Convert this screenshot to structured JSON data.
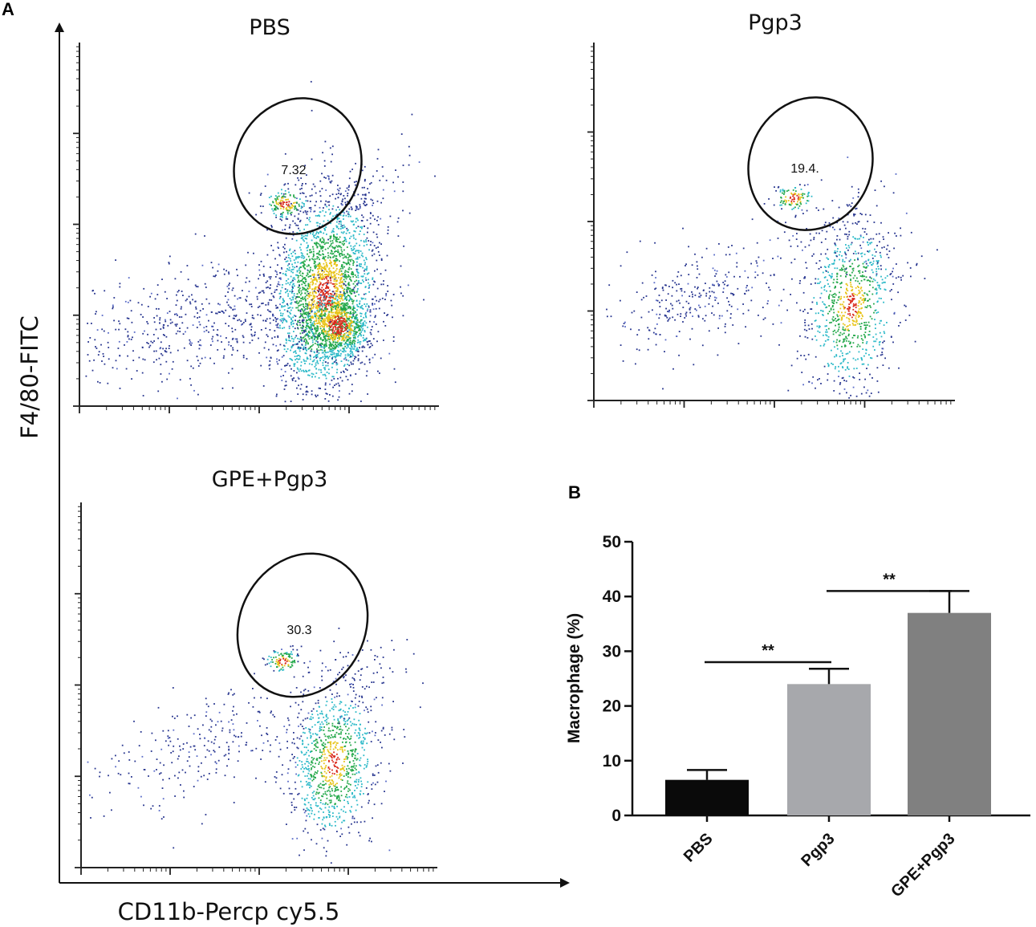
{
  "figure": {
    "panel_a_letter": "A",
    "panel_b_letter": "B",
    "y_axis_label": "F4/80-FITC",
    "x_axis_label": "CD11b-Percp cy5.5"
  },
  "chart_data": [
    {
      "type": "scatter",
      "title": "PBS",
      "gate_value": "7.32",
      "xlabel": "CD11b-Percp cy5.5",
      "ylabel": "F4/80-FITC"
    },
    {
      "type": "scatter",
      "title": "Pgp3",
      "gate_value": "19.4.",
      "xlabel": "CD11b-Percp cy5.5",
      "ylabel": "F4/80-FITC"
    },
    {
      "type": "scatter",
      "title": "GPE+Pgp3",
      "gate_value": "30.3",
      "xlabel": "CD11b-Percp cy5.5",
      "ylabel": "F4/80-FITC"
    },
    {
      "type": "bar",
      "title": "",
      "categories": [
        "PBS",
        "Pgp3",
        "GPE+Pgp3"
      ],
      "values": [
        6.5,
        24,
        37
      ],
      "error": [
        1.8,
        2.8,
        4
      ],
      "colors": [
        "#0a0a0a",
        "#a7a8ac",
        "#808080"
      ],
      "xlabel": "",
      "ylabel": "Macrophage (%)",
      "ylim": [
        0,
        50
      ],
      "yticks": [
        0,
        10,
        20,
        30,
        40,
        50
      ],
      "significance": [
        {
          "from": 0,
          "to": 1,
          "label": "**"
        },
        {
          "from": 1,
          "to": 2,
          "label": "**"
        }
      ]
    }
  ]
}
